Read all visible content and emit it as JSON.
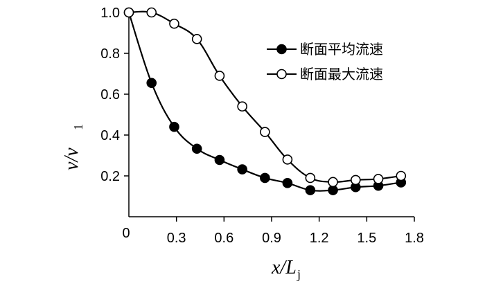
{
  "chart_data": {
    "type": "line",
    "xlabel": "x/L",
    "xlabel_sub": "j",
    "ylabel": "v/v",
    "ylabel_sub": "1",
    "xlim": [
      0,
      1.8
    ],
    "ylim": [
      0,
      1.0
    ],
    "xticks": [
      "0.3",
      "0.6",
      "0.9",
      "1.2",
      "1.5",
      "1.8"
    ],
    "yticks": [
      "0.2",
      "0.4",
      "0.6",
      "0.8",
      "1.0"
    ],
    "origin_label": "0",
    "grid": false,
    "legend_position": "top-right",
    "series": [
      {
        "name": "断面平均流速",
        "marker": "filled-circle",
        "x": [
          0,
          0.143,
          0.286,
          0.429,
          0.572,
          0.715,
          0.858,
          1.0,
          1.144,
          1.287,
          1.43,
          1.573,
          1.716
        ],
        "y": [
          1.0,
          0.655,
          0.44,
          0.333,
          0.278,
          0.232,
          0.19,
          0.165,
          0.13,
          0.13,
          0.145,
          0.152,
          0.168
        ]
      },
      {
        "name": "断面最大流速",
        "marker": "open-circle",
        "x": [
          0,
          0.143,
          0.286,
          0.429,
          0.572,
          0.715,
          0.858,
          1.0,
          1.144,
          1.287,
          1.43,
          1.573,
          1.716
        ],
        "y": [
          1.0,
          1.0,
          0.945,
          0.87,
          0.69,
          0.54,
          0.415,
          0.28,
          0.19,
          0.17,
          0.18,
          0.185,
          0.2
        ]
      }
    ]
  }
}
